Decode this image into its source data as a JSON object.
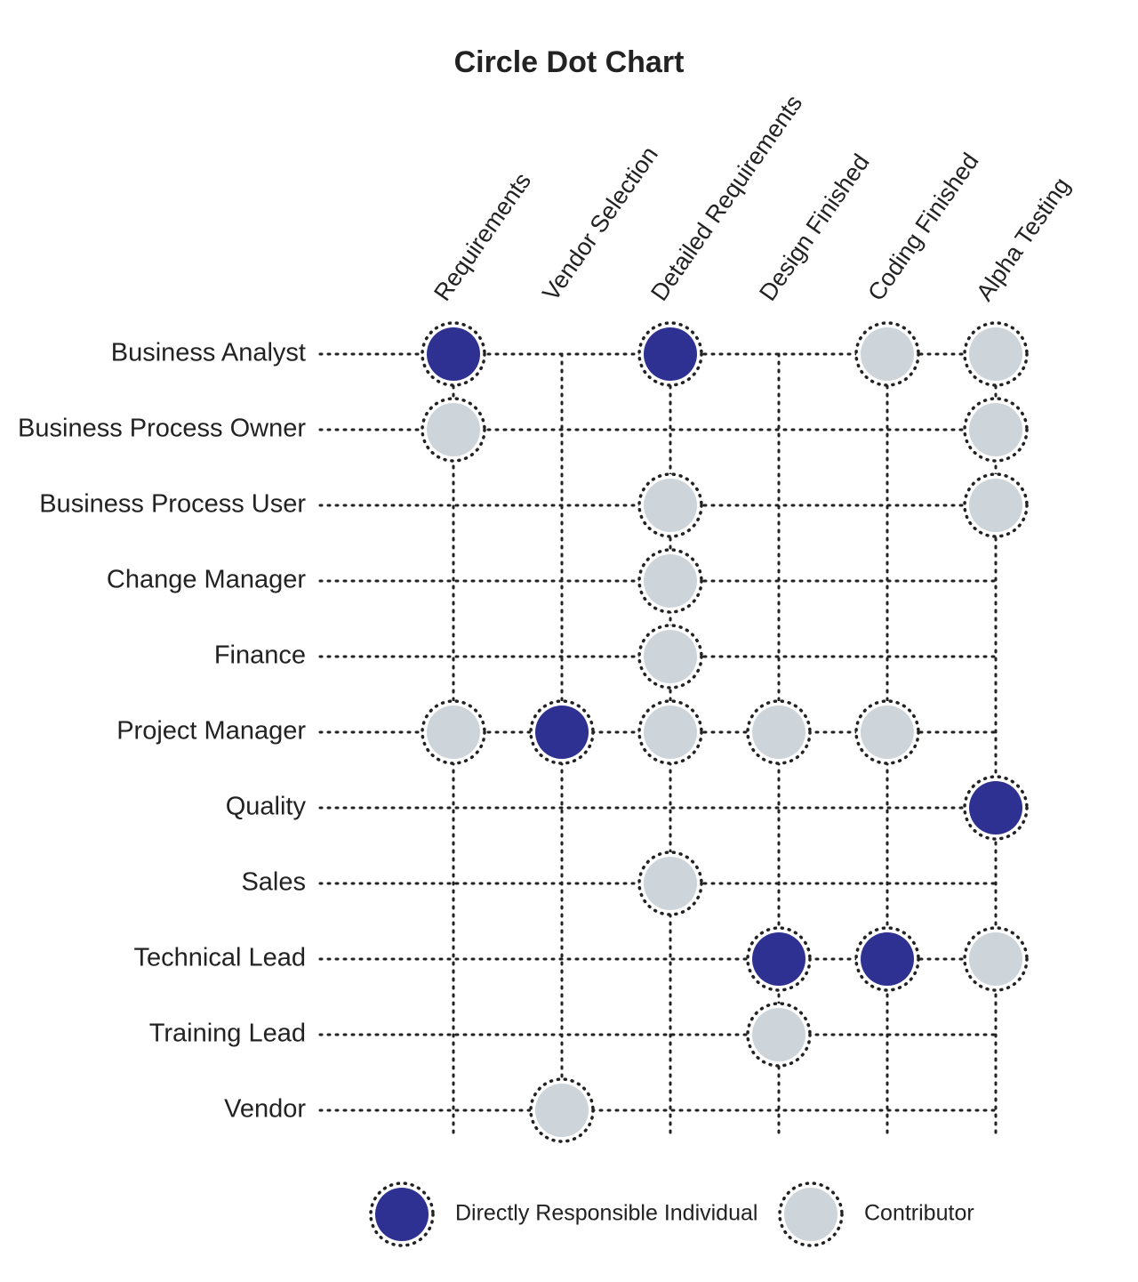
{
  "title": "Circle Dot Chart",
  "legend": [
    {
      "label": "Directly Responsible Individual",
      "color": "#2e3192"
    },
    {
      "label": "Contributor",
      "color": "#cdd5db"
    }
  ],
  "columns": [
    "Requirements",
    "Vendor Selection",
    "Detailed Requirements",
    "Design Finished",
    "Coding Finished",
    "Alpha Testing"
  ],
  "rows": [
    {
      "label": "Business Analyst",
      "marks": [
        0,
        null,
        0,
        null,
        1,
        1
      ]
    },
    {
      "label": "Business Process Owner",
      "marks": [
        1,
        null,
        null,
        null,
        null,
        1
      ]
    },
    {
      "label": "Business Process User",
      "marks": [
        null,
        null,
        1,
        null,
        null,
        1
      ]
    },
    {
      "label": "Change Manager",
      "marks": [
        null,
        null,
        1,
        null,
        null,
        null
      ]
    },
    {
      "label": "Finance",
      "marks": [
        null,
        null,
        1,
        null,
        null,
        null
      ]
    },
    {
      "label": "Project Manager",
      "marks": [
        1,
        0,
        1,
        1,
        1,
        null
      ]
    },
    {
      "label": "Quality",
      "marks": [
        null,
        null,
        null,
        null,
        null,
        0
      ]
    },
    {
      "label": "Sales",
      "marks": [
        null,
        null,
        1,
        null,
        null,
        null
      ]
    },
    {
      "label": "Technical Lead",
      "marks": [
        null,
        null,
        null,
        0,
        0,
        1
      ]
    },
    {
      "label": "Training Lead",
      "marks": [
        null,
        null,
        null,
        1,
        null,
        null
      ]
    },
    {
      "label": "Vendor",
      "marks": [
        null,
        1,
        null,
        null,
        null,
        null
      ]
    }
  ]
}
